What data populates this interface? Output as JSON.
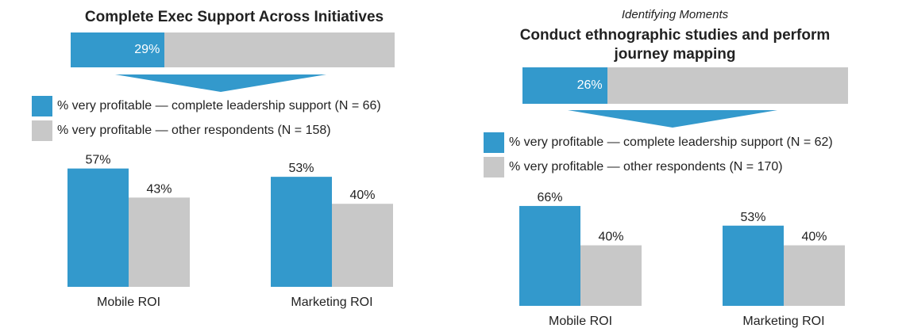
{
  "colors": {
    "support": "#3399cc",
    "other": "#c8c8c8"
  },
  "panels": [
    {
      "subtitle": "",
      "title": "Complete Exec Support Across Initiatives",
      "top_percent_label": "29%",
      "top_percent_value": 0.29,
      "legend": [
        "% very profitable — complete leadership support (N = 66)",
        "% very profitable — other respondents (N = 158)"
      ]
    },
    {
      "subtitle": "Identifying Moments",
      "title": "Conduct ethnographic studies and perform journey mapping",
      "top_percent_label": "26%",
      "top_percent_value": 0.26,
      "legend": [
        "% very profitable — complete leadership support (N = 62)",
        "% very profitable — other respondents (N = 170)"
      ]
    }
  ],
  "chart_data": [
    {
      "type": "bar",
      "title": "Complete Exec Support Across Initiatives",
      "categories": [
        "Mobile ROI",
        "Marketing ROI"
      ],
      "series": [
        {
          "name": "% very profitable — complete leadership support (N = 66)",
          "values": [
            57,
            53
          ],
          "labels": [
            "57%",
            "53%"
          ]
        },
        {
          "name": "% very profitable — other respondents (N = 158)",
          "values": [
            43,
            40
          ],
          "labels": [
            "43%",
            "40%"
          ]
        }
      ],
      "ylim": [
        0,
        100
      ]
    },
    {
      "type": "bar",
      "title": "Conduct ethnographic studies and perform journey mapping",
      "categories": [
        "Mobile ROI",
        "Marketing ROI"
      ],
      "series": [
        {
          "name": "% very profitable — complete leadership support (N = 62)",
          "values": [
            66,
            53
          ],
          "labels": [
            "66%",
            "53%"
          ]
        },
        {
          "name": "% very profitable — other respondents (N = 170)",
          "values": [
            40,
            40
          ],
          "labels": [
            "40%",
            "40%"
          ]
        }
      ],
      "ylim": [
        0,
        100
      ]
    }
  ]
}
